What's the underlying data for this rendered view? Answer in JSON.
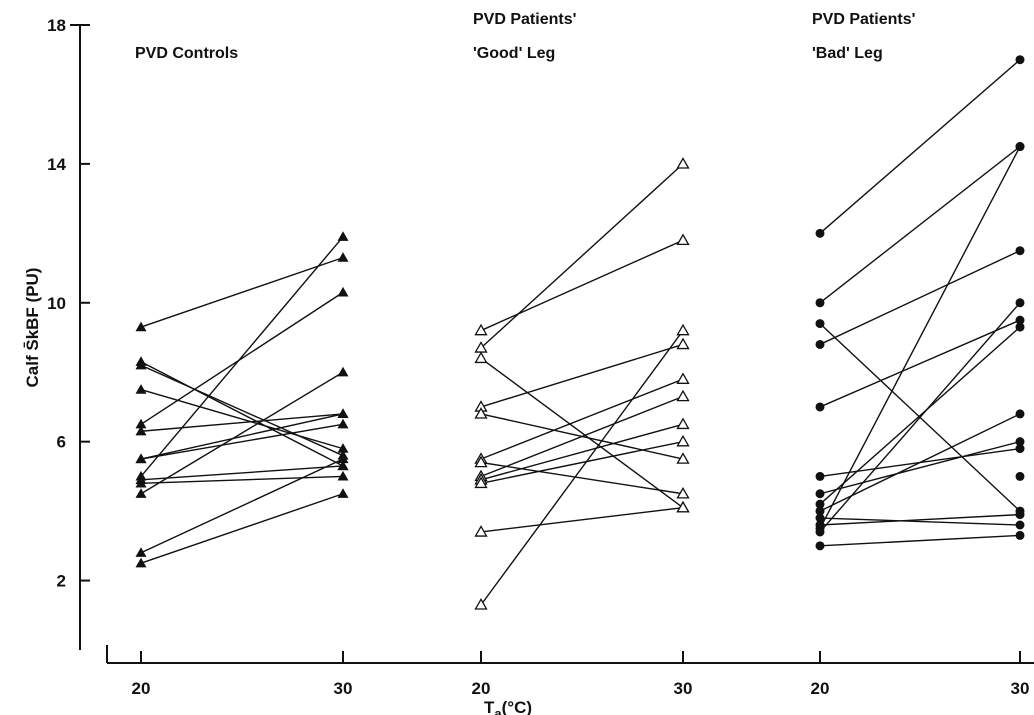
{
  "chart_data": {
    "type": "line",
    "ylabel": "Calf S̄kBF (PU)",
    "xlabel_main": "T",
    "xlabel_sub": "a",
    "xlabel_unit": "(°C)",
    "yticks": [
      "2",
      "6",
      "10",
      "14",
      "18"
    ],
    "ylim": [
      0,
      18
    ],
    "x_categories": [
      "20",
      "30"
    ],
    "grid": false,
    "panels": [
      {
        "title_lines": [
          "PVD Controls"
        ],
        "marker": "filled-triangle",
        "series": [
          {
            "values": [
              9.3,
              11.3
            ]
          },
          {
            "values": [
              8.3,
              5.3
            ]
          },
          {
            "values": [
              8.2,
              5.6
            ]
          },
          {
            "values": [
              7.5,
              5.8
            ]
          },
          {
            "values": [
              6.5,
              10.3
            ]
          },
          {
            "values": [
              6.3,
              6.8
            ]
          },
          {
            "values": [
              5.5,
              6.8
            ]
          },
          {
            "values": [
              5.5,
              6.5
            ]
          },
          {
            "values": [
              5.0,
              11.9
            ]
          },
          {
            "values": [
              4.9,
              5.3
            ]
          },
          {
            "values": [
              4.8,
              5.0
            ]
          },
          {
            "values": [
              4.5,
              8.0
            ]
          },
          {
            "values": [
              2.8,
              5.5
            ]
          },
          {
            "values": [
              2.5,
              4.5
            ]
          }
        ]
      },
      {
        "title_lines": [
          "PVD Patients'",
          "'Good' Leg"
        ],
        "marker": "open-triangle",
        "series": [
          {
            "values": [
              9.2,
              11.8
            ]
          },
          {
            "values": [
              8.7,
              14.0
            ]
          },
          {
            "values": [
              8.4,
              4.1
            ]
          },
          {
            "values": [
              7.0,
              8.8
            ]
          },
          {
            "values": [
              6.8,
              5.5
            ]
          },
          {
            "values": [
              5.5,
              7.8
            ]
          },
          {
            "values": [
              5.4,
              4.5
            ]
          },
          {
            "values": [
              5.0,
              7.3
            ]
          },
          {
            "values": [
              4.9,
              6.5
            ]
          },
          {
            "values": [
              4.8,
              6.0
            ]
          },
          {
            "values": [
              3.4,
              4.1
            ]
          },
          {
            "values": [
              1.3,
              9.2
            ]
          }
        ]
      },
      {
        "title_lines": [
          "PVD Patients'",
          "'Bad' Leg"
        ],
        "marker": "filled-circle",
        "series": [
          {
            "values": [
              12.0,
              17.0
            ]
          },
          {
            "values": [
              10.0,
              14.5
            ]
          },
          {
            "values": [
              9.4,
              4.0
            ]
          },
          {
            "values": [
              8.8,
              11.5
            ]
          },
          {
            "values": [
              7.0,
              9.5
            ]
          },
          {
            "values": [
              5.0,
              5.8
            ]
          },
          {
            "values": [
              4.5,
              6.0
            ]
          },
          {
            "values": [
              4.2,
              9.3
            ]
          },
          {
            "values": [
              4.0,
              6.8
            ]
          },
          {
            "values": [
              3.8,
              3.6
            ]
          },
          {
            "values": [
              3.6,
              3.9
            ]
          },
          {
            "values": [
              3.5,
              14.5
            ]
          },
          {
            "values": [
              3.4,
              10.0
            ]
          },
          {
            "values": [
              3.0,
              3.3
            ]
          }
        ],
        "extra_points": [
          {
            "x": "30",
            "y": 5.0
          }
        ]
      }
    ]
  }
}
